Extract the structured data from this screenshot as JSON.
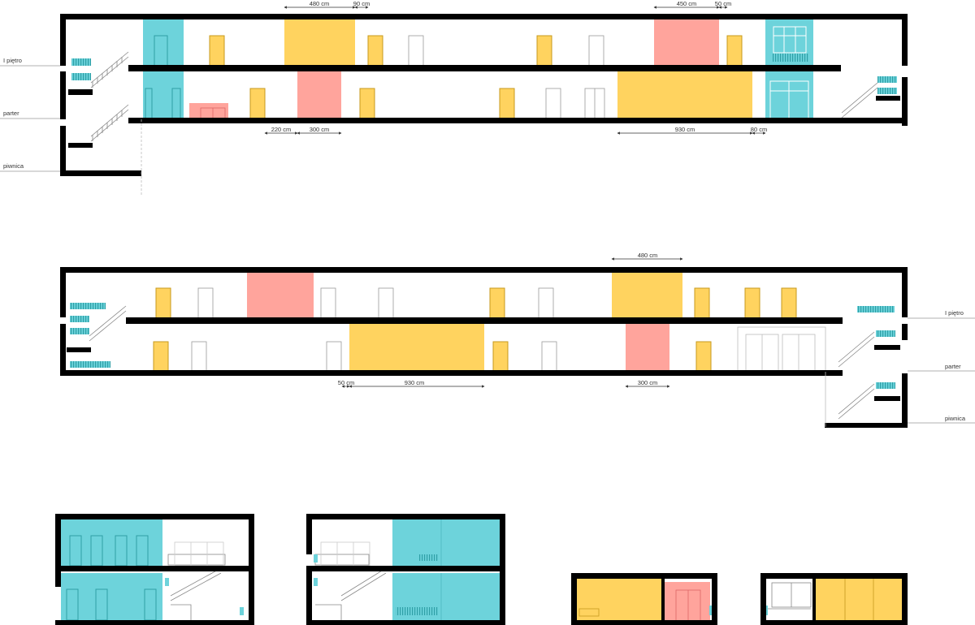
{
  "colors": {
    "wall": "#000000",
    "yellow": "#FFD35F",
    "pink": "#FFA49C",
    "teal": "#6DD3DB",
    "teal_dark": "#2E9FA6",
    "door_yellow_stroke": "#C79A1E",
    "line": "#999999"
  },
  "levels": {
    "floor1": "I piętro",
    "ground": "parter",
    "basement": "piwnica"
  },
  "dimensions": {
    "s1_top_480": "480 cm",
    "s1_top_90": "90 cm",
    "s1_top_450": "450 cm",
    "s1_top_50": "50 cm",
    "s1_bot_220": "220 cm",
    "s1_bot_300": "300 cm",
    "s1_bot_930": "930 cm",
    "s1_bot_80": "80 cm",
    "s2_top_480": "480 cm",
    "s2_bot_50": "50 cm",
    "s2_bot_930": "930 cm",
    "s2_bot_300": "300 cm"
  }
}
